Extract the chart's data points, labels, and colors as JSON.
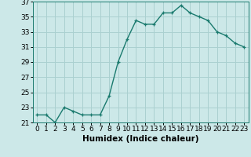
{
  "x": [
    0,
    1,
    2,
    3,
    4,
    5,
    6,
    7,
    8,
    9,
    10,
    11,
    12,
    13,
    14,
    15,
    16,
    17,
    18,
    19,
    20,
    21,
    22,
    23
  ],
  "y": [
    22,
    22,
    21,
    23,
    22.5,
    22,
    22,
    22,
    24.5,
    29,
    32,
    34.5,
    34,
    34,
    35.5,
    35.5,
    36.5,
    35.5,
    35,
    34.5,
    33,
    32.5,
    31.5,
    31
  ],
  "line_color": "#1a7a6e",
  "marker": "+",
  "marker_color": "#1a7a6e",
  "background_color": "#cce8e8",
  "grid_color": "#aad0d0",
  "xlabel": "Humidex (Indice chaleur)",
  "ylim": [
    21,
    37
  ],
  "xlim": [
    -0.5,
    23.5
  ],
  "yticks": [
    21,
    23,
    25,
    27,
    29,
    31,
    33,
    35,
    37
  ],
  "xticks": [
    0,
    1,
    2,
    3,
    4,
    5,
    6,
    7,
    8,
    9,
    10,
    11,
    12,
    13,
    14,
    15,
    16,
    17,
    18,
    19,
    20,
    21,
    22,
    23
  ],
  "xlabel_fontsize": 7.5,
  "tick_fontsize": 6.5,
  "line_width": 1.0,
  "marker_size": 3.5
}
